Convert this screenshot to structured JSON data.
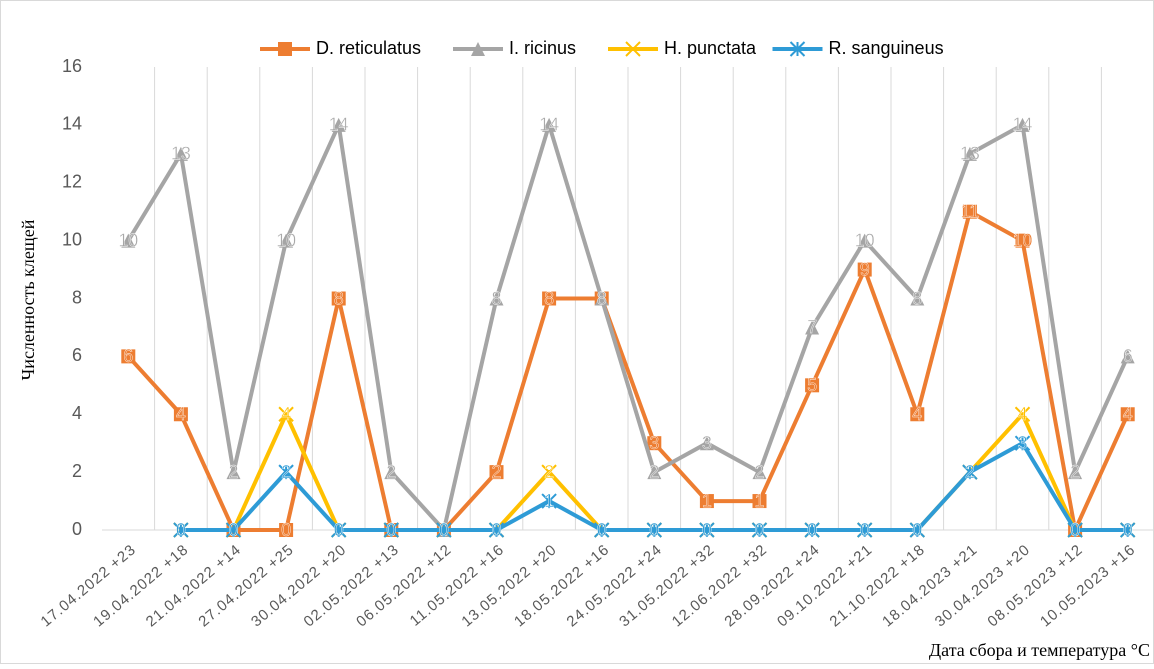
{
  "chart_data": {
    "type": "line",
    "y_label": "Численность клещей",
    "x_label": "Дата сбора и температура °C",
    "categories": [
      "17.04.2022 +23",
      "19.04.2022 +18",
      "21.04.2022 +14",
      "27.04.2022 +25",
      "30.04.2022 +20",
      "02.05.2022 +13",
      "06.05.2022 +12",
      "11.05.2022 +16",
      "13.05.2022 +20",
      "18.05.2022 +16",
      "24.05.2022 +24",
      "31.05.2022 +32",
      "12.06.2022 +32",
      "28.09.2022 +24",
      "09.10.2022 +21",
      "21.10.2022 +18",
      "18.04.2023 +21",
      "30.04.2023 +20",
      "08.05.2023 +12",
      "10.05.2023 +16"
    ],
    "series": [
      {
        "name": "D. reticulatus",
        "color": "#ed7d31",
        "marker": "square",
        "values": [
          6,
          4,
          0,
          0,
          8,
          0,
          0,
          2,
          8,
          8,
          3,
          1,
          1,
          5,
          9,
          4,
          11,
          10,
          0,
          4
        ]
      },
      {
        "name": "I. ricinus",
        "color": "#a5a5a5",
        "marker": "triangle",
        "values": [
          10,
          13,
          2,
          10,
          14,
          2,
          0,
          8,
          14,
          8,
          2,
          3,
          2,
          7,
          10,
          8,
          13,
          14,
          2,
          6
        ]
      },
      {
        "name": "H. punctata",
        "color": "#ffc000",
        "marker": "x",
        "values": [
          null,
          0,
          0,
          4,
          0,
          0,
          0,
          0,
          2,
          0,
          0,
          0,
          0,
          0,
          0,
          0,
          2,
          4,
          0,
          0
        ]
      },
      {
        "name": "R. sanguineus",
        "color": "#2e9bd6",
        "marker": "star",
        "values": [
          null,
          0,
          0,
          2,
          0,
          0,
          0,
          0,
          1,
          0,
          0,
          0,
          0,
          0,
          0,
          0,
          2,
          3,
          0,
          0
        ]
      }
    ],
    "ylim": [
      0,
      16
    ],
    "yticks": [
      0,
      2,
      4,
      6,
      8,
      10,
      12,
      14,
      16
    ],
    "grid": true,
    "legend": "top",
    "data_labels": true
  }
}
